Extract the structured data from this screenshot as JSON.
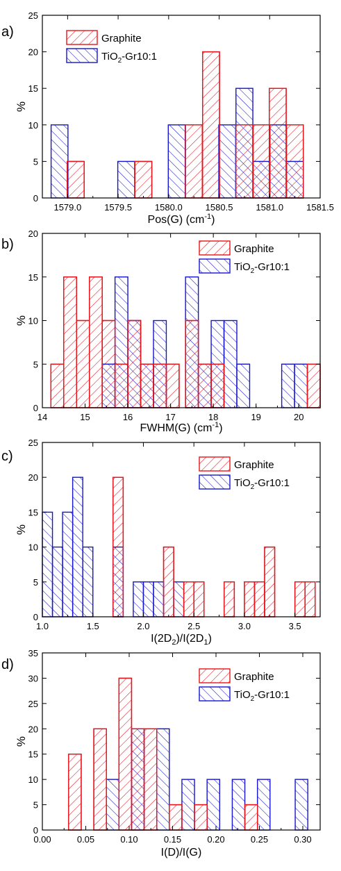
{
  "colors": {
    "graphite": "#e8141b",
    "tio2": "#1414d2"
  },
  "chart_data": [
    {
      "panel": "a)",
      "type": "bar",
      "xlabel": "Pos(G) (cm",
      "xlabel_sup": "-1",
      "xlabel_end": ")",
      "ylabel": "%",
      "xlim": [
        1578.75,
        1581.5
      ],
      "ylim": [
        0,
        25
      ],
      "bin_width": 0.167,
      "xticks": [
        "1579.0",
        "1579.5",
        "1580.0",
        "1580.5",
        "1581.0",
        "1581.5"
      ],
      "yticks": [
        "0",
        "5",
        "10",
        "15",
        "20",
        "25"
      ],
      "legend": {
        "position": "top-left",
        "graphite": "Graphite",
        "tio2_prefix": "TiO",
        "tio2_sub": "2",
        "tio2_suffix": "-Gr10:1"
      },
      "series": [
        {
          "name": "Graphite",
          "bins": [
            [
              1579.08,
              5
            ],
            [
              1579.75,
              5
            ],
            [
              1580.25,
              10
            ],
            [
              1580.42,
              20
            ],
            [
              1580.75,
              10
            ],
            [
              1580.92,
              10
            ],
            [
              1581.08,
              15
            ],
            [
              1581.25,
              10
            ]
          ]
        },
        {
          "name": "TiO2-Gr10:1",
          "bins": [
            [
              1578.92,
              10
            ],
            [
              1579.58,
              5
            ],
            [
              1580.08,
              10
            ],
            [
              1580.58,
              10
            ],
            [
              1580.75,
              15
            ],
            [
              1580.92,
              5
            ],
            [
              1581.08,
              10
            ],
            [
              1581.25,
              5
            ]
          ]
        }
      ]
    },
    {
      "panel": "b)",
      "type": "bar",
      "xlabel": "FWHM(G) (cm",
      "xlabel_sup": "-1",
      "xlabel_end": ")",
      "ylabel": "%",
      "xlim": [
        14,
        20.5
      ],
      "ylim": [
        0,
        20
      ],
      "bin_width": 0.3,
      "xticks": [
        "14",
        "15",
        "16",
        "17",
        "18",
        "19",
        "20"
      ],
      "yticks": [
        "0",
        "5",
        "10",
        "15",
        "20"
      ],
      "legend": {
        "position": "top-right",
        "graphite": "Graphite",
        "tio2_prefix": "TiO",
        "tio2_sub": "2",
        "tio2_suffix": "-Gr10:1"
      },
      "series": [
        {
          "name": "Graphite",
          "bins": [
            [
              14.35,
              5
            ],
            [
              14.65,
              15
            ],
            [
              14.95,
              10
            ],
            [
              15.25,
              15
            ],
            [
              15.55,
              10
            ],
            [
              15.85,
              5
            ],
            [
              16.15,
              10
            ],
            [
              16.45,
              5
            ],
            [
              16.75,
              5
            ],
            [
              17.05,
              5
            ],
            [
              17.5,
              10
            ],
            [
              17.8,
              5
            ],
            [
              18.1,
              5
            ],
            [
              20.35,
              5
            ]
          ]
        },
        {
          "name": "TiO2-Gr10:1",
          "bins": [
            [
              15.55,
              5
            ],
            [
              15.85,
              15
            ],
            [
              16.15,
              10
            ],
            [
              16.45,
              5
            ],
            [
              16.75,
              10
            ],
            [
              17.5,
              15
            ],
            [
              17.8,
              5
            ],
            [
              18.1,
              10
            ],
            [
              18.4,
              10
            ],
            [
              18.7,
              5
            ],
            [
              19.75,
              5
            ],
            [
              20.05,
              5
            ]
          ]
        }
      ]
    },
    {
      "panel": "c)",
      "type": "bar",
      "xlabel": "I(2D",
      "xlabel_sub1": "2",
      "xlabel_mid": ")/I(2D",
      "xlabel_sub2": "1",
      "xlabel_end": ")",
      "ylabel": "%",
      "xlim": [
        1.0,
        3.75
      ],
      "ylim": [
        0,
        25
      ],
      "bin_width": 0.1,
      "xticks": [
        "1.0",
        "1.5",
        "2.0",
        "2.5",
        "3.0",
        "3.5"
      ],
      "yticks": [
        "0",
        "5",
        "10",
        "15",
        "20",
        "25"
      ],
      "legend": {
        "position": "top-right",
        "graphite": "Graphite",
        "tio2_prefix": "TiO",
        "tio2_sub": "2",
        "tio2_suffix": "-Gr10:1"
      },
      "series": [
        {
          "name": "Graphite",
          "bins": [
            [
              1.75,
              20
            ],
            [
              2.25,
              10
            ],
            [
              2.45,
              5
            ],
            [
              2.55,
              5
            ],
            [
              2.85,
              5
            ],
            [
              3.05,
              5
            ],
            [
              3.15,
              5
            ],
            [
              3.25,
              10
            ],
            [
              3.55,
              5
            ],
            [
              3.65,
              5
            ]
          ]
        },
        {
          "name": "TiO2-Gr10:1",
          "bins": [
            [
              1.05,
              15
            ],
            [
              1.15,
              10
            ],
            [
              1.25,
              15
            ],
            [
              1.35,
              20
            ],
            [
              1.45,
              10
            ],
            [
              1.75,
              10
            ],
            [
              1.95,
              5
            ],
            [
              2.05,
              5
            ],
            [
              2.15,
              5
            ],
            [
              2.35,
              5
            ]
          ]
        }
      ]
    },
    {
      "panel": "d)",
      "type": "bar",
      "xlabel": "I(D)/I(G)",
      "ylabel": "%",
      "xlim": [
        0.0,
        0.32
      ],
      "ylim": [
        0,
        35
      ],
      "bin_width": 0.0145,
      "xticks": [
        "0.00",
        "0.05",
        "0.10",
        "0.15",
        "0.20",
        "0.25",
        "0.30"
      ],
      "yticks": [
        "0",
        "5",
        "10",
        "15",
        "20",
        "25",
        "30",
        "35"
      ],
      "legend": {
        "position": "top-right",
        "graphite": "Graphite",
        "tio2_prefix": "TiO",
        "tio2_sub": "2",
        "tio2_suffix": "-Gr10:1"
      },
      "series": [
        {
          "name": "Graphite",
          "bins": [
            [
              0.0375,
              15
            ],
            [
              0.0665,
              20
            ],
            [
              0.0955,
              30
            ],
            [
              0.11,
              20
            ],
            [
              0.1245,
              20
            ],
            [
              0.1535,
              5
            ],
            [
              0.1825,
              5
            ],
            [
              0.2405,
              5
            ]
          ]
        },
        {
          "name": "TiO2-Gr10:1",
          "bins": [
            [
              0.081,
              10
            ],
            [
              0.11,
              20
            ],
            [
              0.139,
              20
            ],
            [
              0.168,
              10
            ],
            [
              0.197,
              10
            ],
            [
              0.226,
              10
            ],
            [
              0.255,
              10
            ],
            [
              0.2985,
              10
            ]
          ]
        }
      ]
    }
  ]
}
